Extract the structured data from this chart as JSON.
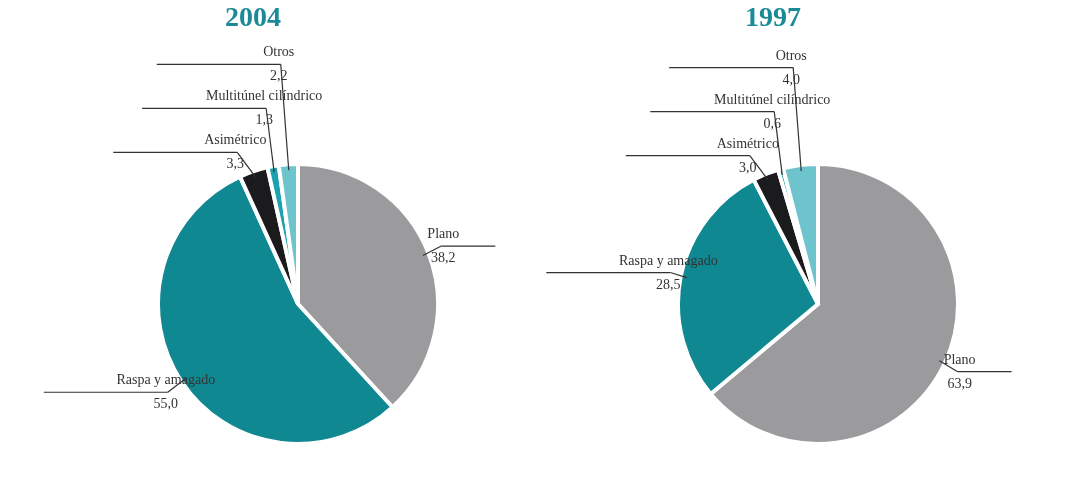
{
  "chart_data": [
    {
      "type": "pie",
      "title": "2004",
      "categories": [
        "Plano",
        "Raspa y amagado",
        "Asimétrico",
        "Multitúnel cilíndrico",
        "Otros"
      ],
      "values": [
        38.2,
        55.0,
        3.3,
        1.3,
        2.2
      ],
      "value_labels": [
        "38,2",
        "55,0",
        "3,3",
        "1,3",
        "2,2"
      ],
      "colors": [
        "#9b9b9d",
        "#0f8891",
        "#1b1b1d",
        "#1aa2ae",
        "#6ec4cd"
      ]
    },
    {
      "type": "pie",
      "title": "1997",
      "categories": [
        "Plano",
        "Raspa y amagado",
        "Asimétrico",
        "Multitúnel cilíndrico",
        "Otros"
      ],
      "values": [
        63.9,
        28.5,
        3.0,
        0.6,
        4.0
      ],
      "value_labels": [
        "63,9",
        "28,5",
        "3,0",
        "0,6",
        "4,0"
      ],
      "colors": [
        "#9b9b9d",
        "#0f8891",
        "#1b1b1d",
        "#1aa2ae",
        "#6ec4cd"
      ]
    }
  ]
}
